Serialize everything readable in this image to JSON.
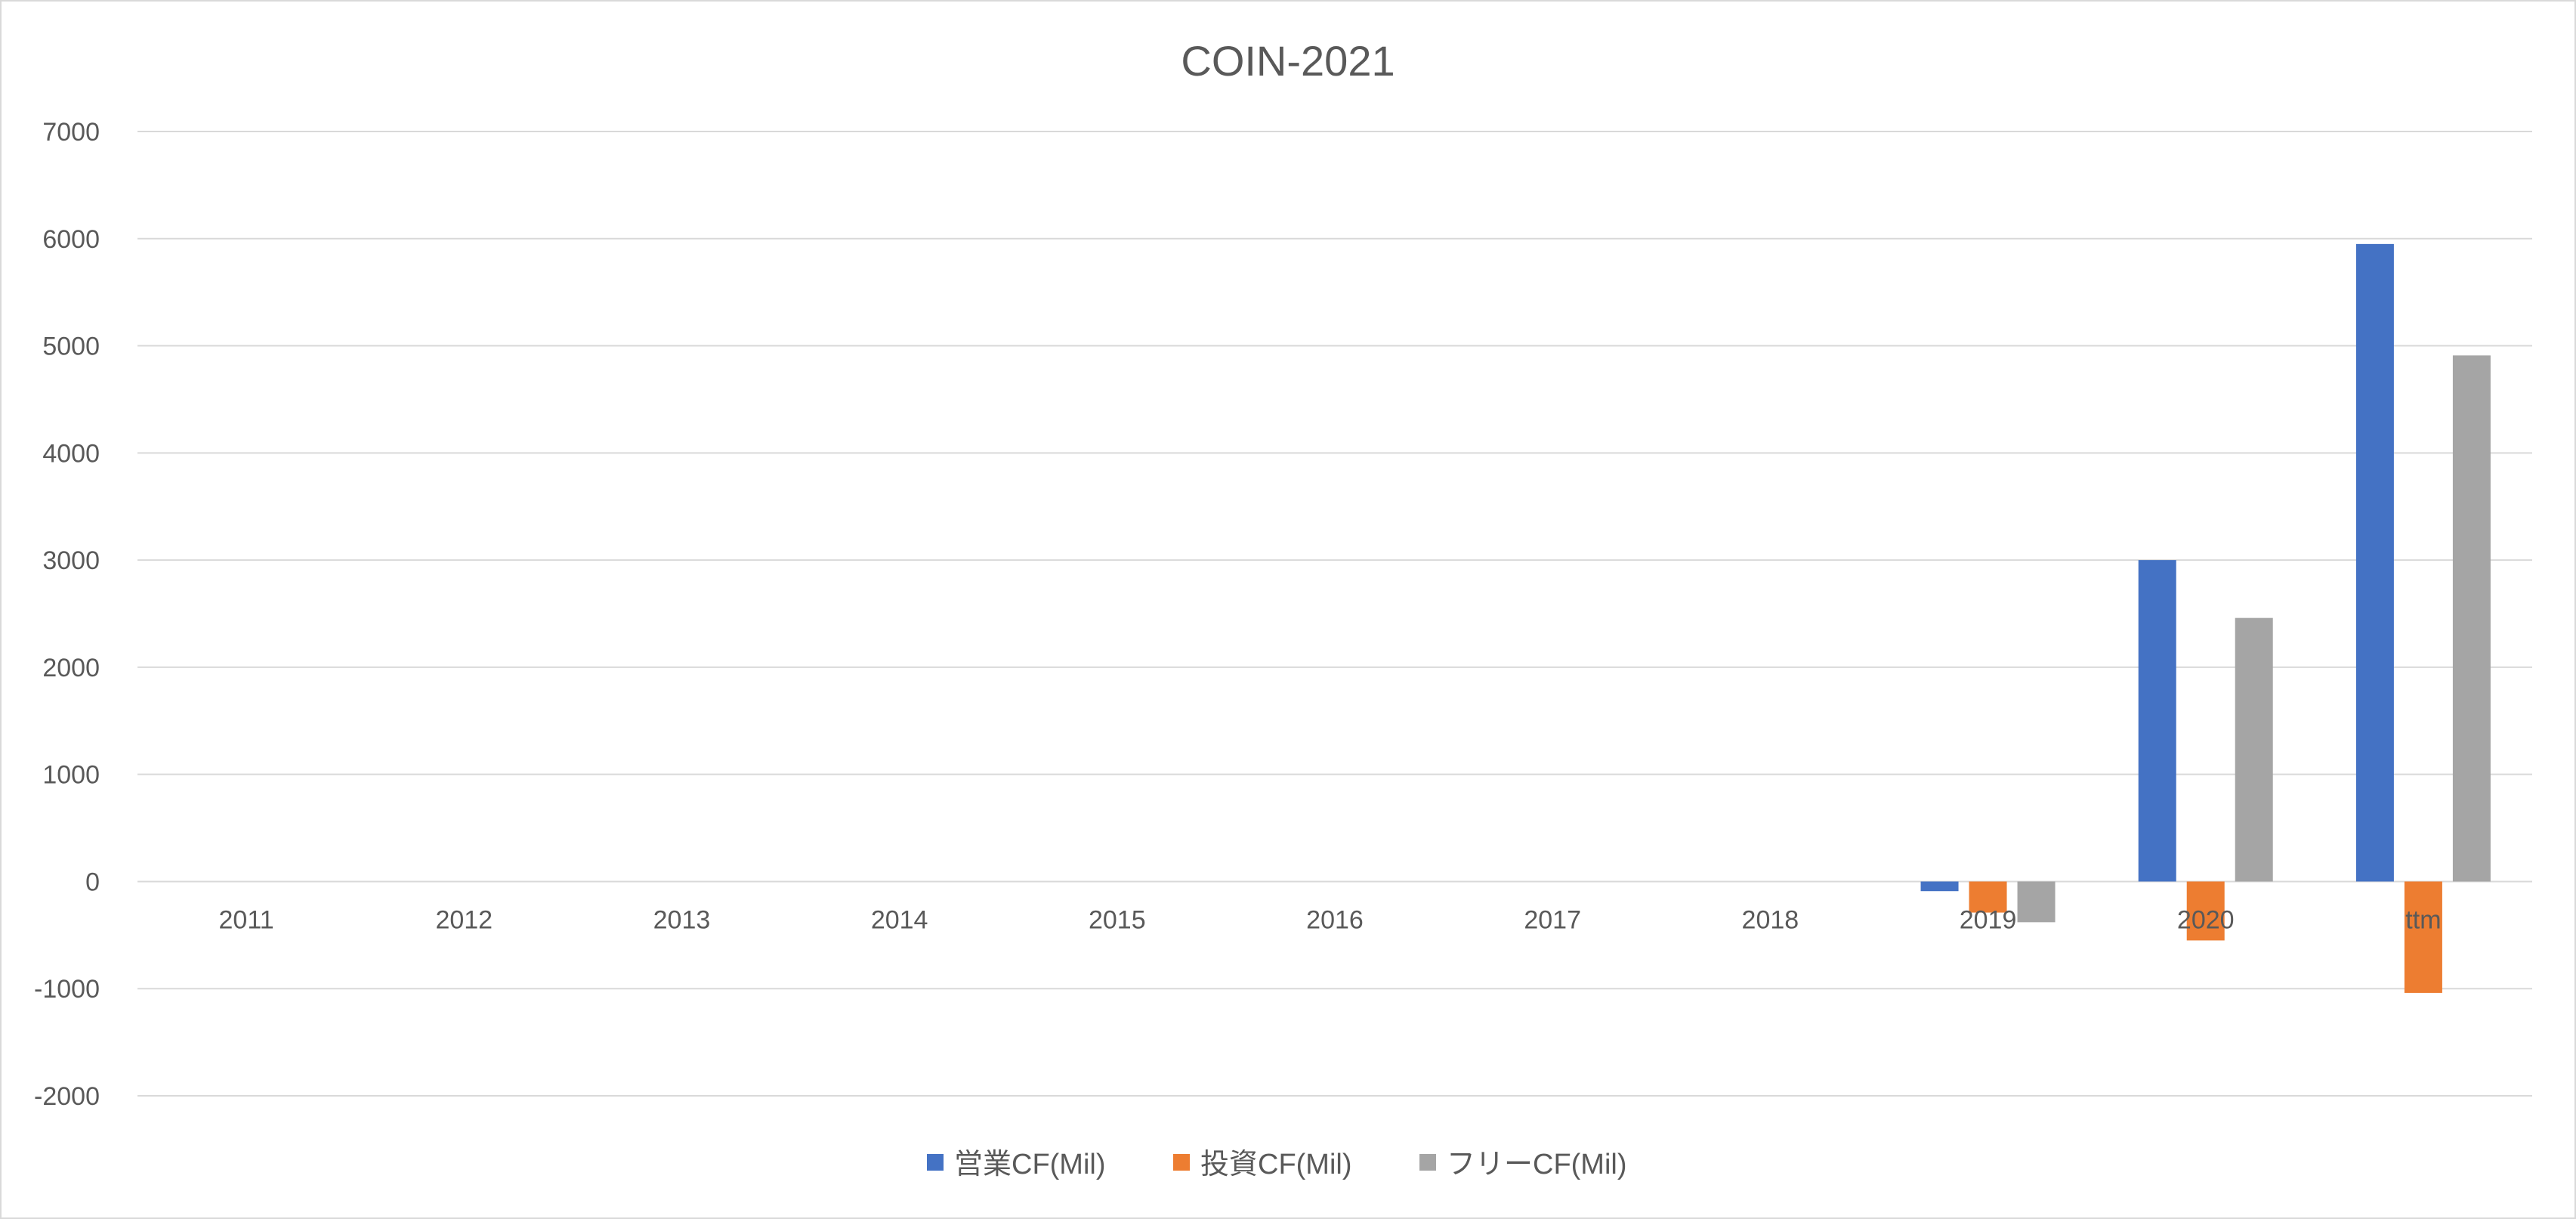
{
  "chart_data": {
    "type": "bar",
    "title": "COIN-2021",
    "categories": [
      "2011",
      "2012",
      "2013",
      "2014",
      "2015",
      "2016",
      "2017",
      "2018",
      "2019",
      "2020",
      "ttm"
    ],
    "series": [
      {
        "name": "営業CF(Mil)",
        "color": "#4472c4",
        "values": [
          null,
          null,
          null,
          null,
          null,
          null,
          null,
          null,
          -90,
          3000,
          5950
        ]
      },
      {
        "name": "投資CF(Mil)",
        "color": "#ed7d31",
        "values": [
          null,
          null,
          null,
          null,
          null,
          null,
          null,
          null,
          -290,
          -550,
          -1040
        ]
      },
      {
        "name": "フリーCF(Mil)",
        "color": "#a5a5a5",
        "values": [
          null,
          null,
          null,
          null,
          null,
          null,
          null,
          null,
          -380,
          2460,
          4910
        ]
      }
    ],
    "y_ticks": [
      "7000",
      "6000",
      "5000",
      "4000",
      "3000",
      "2000",
      "1000",
      "0",
      "-1000",
      "-2000"
    ],
    "ylim": [
      -2000,
      7000
    ],
    "grid": true,
    "legend_position": "bottom"
  }
}
